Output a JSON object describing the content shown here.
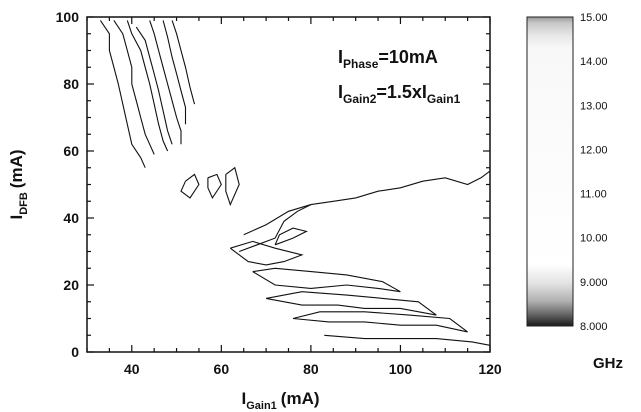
{
  "chart_data": {
    "type": "contour",
    "x_axis": {
      "label_main": "I",
      "label_sub": "Gain1",
      "label_unit": "(mA)",
      "range": [
        30,
        120
      ],
      "ticks": [
        40,
        60,
        80,
        100,
        120
      ]
    },
    "y_axis": {
      "label_main": "I",
      "label_sub": "DFB",
      "label_unit": "(mA)",
      "range": [
        0,
        100
      ],
      "ticks": [
        0,
        20,
        40,
        60,
        80,
        100
      ]
    },
    "annotations": [
      {
        "main": "I",
        "sub": "Phase",
        "rest": "=10mA"
      },
      {
        "main": "I",
        "sub": "Gain2",
        "mid": "=1.5xI",
        "sub2": "Gain1",
        "rest": ""
      }
    ],
    "colorbar": {
      "unit": "GHz",
      "range": [
        8.0,
        15.0
      ],
      "tick_labels": [
        "15.00",
        "14.00",
        "13.00",
        "12.00",
        "11.00",
        "10.00",
        "9.000",
        "8.000"
      ],
      "tick_values": [
        15,
        14,
        13,
        12,
        11,
        10,
        9,
        8
      ]
    },
    "contours": [
      {
        "name": "upper-left-band-1",
        "points": [
          [
            33,
            99
          ],
          [
            35,
            95
          ],
          [
            35,
            90
          ],
          [
            36,
            85
          ],
          [
            37,
            80
          ],
          [
            38,
            74
          ],
          [
            39,
            68
          ],
          [
            40,
            62
          ],
          [
            42,
            58
          ],
          [
            43,
            55
          ]
        ]
      },
      {
        "name": "upper-left-band-2",
        "points": [
          [
            36,
            99
          ],
          [
            38,
            95
          ],
          [
            39,
            90
          ],
          [
            40,
            85
          ],
          [
            40,
            80
          ],
          [
            41,
            75
          ],
          [
            42,
            70
          ],
          [
            43,
            65
          ],
          [
            44,
            62
          ],
          [
            45,
            59
          ]
        ]
      },
      {
        "name": "upper-left-band-3",
        "points": [
          [
            39,
            99
          ],
          [
            40,
            95
          ],
          [
            42,
            90
          ],
          [
            43,
            85
          ],
          [
            44,
            80
          ],
          [
            45,
            74
          ],
          [
            46,
            68
          ],
          [
            47,
            63
          ],
          [
            48,
            60
          ]
        ]
      },
      {
        "name": "upper-left-band-4",
        "points": [
          [
            41,
            97
          ],
          [
            43,
            93
          ],
          [
            44,
            88
          ],
          [
            45,
            83
          ],
          [
            46,
            78
          ],
          [
            47,
            72
          ],
          [
            48,
            66
          ],
          [
            49,
            62
          ]
        ]
      },
      {
        "name": "upper-left-band-5",
        "points": [
          [
            44,
            99
          ],
          [
            45,
            95
          ],
          [
            46,
            90
          ],
          [
            47,
            85
          ],
          [
            48,
            80
          ],
          [
            49,
            75
          ],
          [
            50,
            70
          ],
          [
            51,
            66
          ],
          [
            51,
            62
          ]
        ]
      },
      {
        "name": "upper-left-band-6",
        "points": [
          [
            47,
            99
          ],
          [
            48,
            94
          ],
          [
            49,
            88
          ],
          [
            50,
            83
          ],
          [
            51,
            78
          ],
          [
            52,
            73
          ],
          [
            52,
            68
          ]
        ]
      },
      {
        "name": "upper-left-edge",
        "points": [
          [
            49,
            99
          ],
          [
            50,
            95
          ],
          [
            51,
            90
          ],
          [
            52,
            85
          ],
          [
            53,
            79
          ],
          [
            54,
            74
          ]
        ]
      },
      {
        "name": "mid-small-1",
        "points": [
          [
            52,
            51
          ],
          [
            54,
            53
          ],
          [
            55,
            50
          ],
          [
            53,
            46
          ],
          [
            51,
            48
          ],
          [
            52,
            51
          ]
        ]
      },
      {
        "name": "mid-small-2",
        "points": [
          [
            57,
            52
          ],
          [
            59,
            53
          ],
          [
            60,
            50
          ],
          [
            58,
            46
          ],
          [
            57,
            49
          ],
          [
            57,
            52
          ]
        ]
      },
      {
        "name": "mid-small-3",
        "points": [
          [
            61,
            53
          ],
          [
            63,
            55
          ],
          [
            64,
            50
          ],
          [
            62,
            44
          ],
          [
            61,
            48
          ],
          [
            61,
            53
          ]
        ]
      },
      {
        "name": "upper-right-boundary",
        "points": [
          [
            65,
            35
          ],
          [
            70,
            38
          ],
          [
            75,
            42
          ],
          [
            80,
            44
          ],
          [
            85,
            45
          ],
          [
            90,
            46
          ],
          [
            95,
            48
          ],
          [
            100,
            49
          ],
          [
            105,
            51
          ],
          [
            110,
            52
          ],
          [
            115,
            50
          ],
          [
            118,
            52
          ],
          [
            120,
            54
          ]
        ]
      },
      {
        "name": "lower-boundary",
        "points": [
          [
            64,
            30
          ],
          [
            68,
            32
          ],
          [
            72,
            34
          ],
          [
            74,
            39
          ],
          [
            77,
            42
          ],
          [
            80,
            44
          ]
        ]
      },
      {
        "name": "band-lower-1",
        "points": [
          [
            62,
            31
          ],
          [
            66,
            27
          ],
          [
            70,
            26
          ],
          [
            74,
            27
          ],
          [
            78,
            29
          ],
          [
            72,
            31
          ],
          [
            67,
            33
          ],
          [
            62,
            31
          ]
        ]
      },
      {
        "name": "band-lower-2",
        "points": [
          [
            67,
            24
          ],
          [
            72,
            20
          ],
          [
            80,
            19
          ],
          [
            88,
            20
          ],
          [
            95,
            19
          ],
          [
            100,
            18
          ],
          [
            96,
            21
          ],
          [
            88,
            23
          ],
          [
            80,
            24
          ],
          [
            72,
            25
          ],
          [
            67,
            24
          ]
        ]
      },
      {
        "name": "band-lower-3",
        "points": [
          [
            70,
            16
          ],
          [
            78,
            14
          ],
          [
            86,
            14
          ],
          [
            92,
            13
          ],
          [
            100,
            13
          ],
          [
            108,
            11
          ],
          [
            104,
            15
          ],
          [
            96,
            16
          ],
          [
            88,
            17
          ],
          [
            78,
            18
          ],
          [
            70,
            16
          ]
        ]
      },
      {
        "name": "band-lower-4",
        "points": [
          [
            76,
            10
          ],
          [
            84,
            9
          ],
          [
            92,
            9
          ],
          [
            100,
            8
          ],
          [
            108,
            8
          ],
          [
            115,
            6
          ],
          [
            111,
            10
          ],
          [
            102,
            11
          ],
          [
            92,
            12
          ],
          [
            82,
            12
          ],
          [
            76,
            10
          ]
        ]
      },
      {
        "name": "band-lower-5",
        "points": [
          [
            83,
            5
          ],
          [
            92,
            4
          ],
          [
            100,
            4
          ],
          [
            108,
            4
          ],
          [
            116,
            3
          ],
          [
            120,
            2
          ]
        ]
      },
      {
        "name": "band-lower-6",
        "points": [
          [
            72,
            32
          ],
          [
            76,
            34
          ],
          [
            79,
            36
          ],
          [
            76,
            37
          ],
          [
            73,
            35
          ],
          [
            72,
            32
          ]
        ]
      }
    ]
  }
}
